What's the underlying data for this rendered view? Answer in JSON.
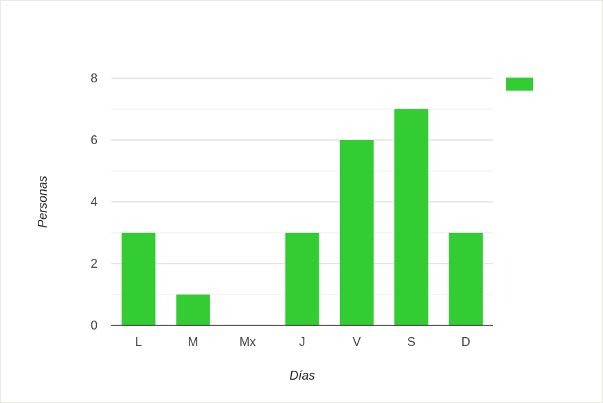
{
  "chart_data": {
    "type": "bar",
    "title": "",
    "xlabel": "Días",
    "ylabel": "Personas",
    "categories": [
      "L",
      "M",
      "Mx",
      "J",
      "V",
      "S",
      "D"
    ],
    "series": [
      {
        "name": "",
        "values": [
          3,
          1,
          0,
          3,
          6,
          7,
          3
        ],
        "color": "#33cc33"
      }
    ],
    "ylim": [
      0,
      8
    ],
    "yticks": [
      0,
      2,
      4,
      6,
      8
    ],
    "grid": true,
    "legend": "right",
    "colors": {
      "bar": "#33cc33",
      "gridline": "#cccccc",
      "minor_gridline": "#ebebeb",
      "axis": "#333333"
    }
  }
}
